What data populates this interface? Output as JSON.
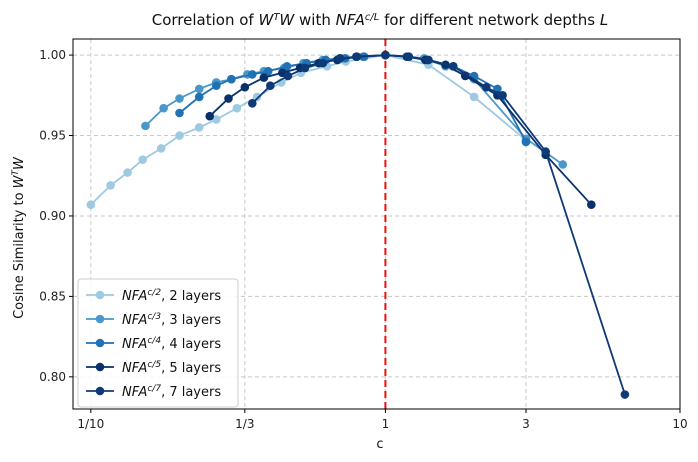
{
  "chart_data": {
    "type": "line",
    "title_parts": [
      "Correlation of ",
      "W",
      "T",
      "W",
      " with ",
      "NFA",
      "c/L",
      " for different network depths ",
      "L"
    ],
    "title": "Correlation of W^T W with NFA^{c/L} for different network depths L",
    "xlabel": "c",
    "ylabel": "Cosine Similarity to W^T W",
    "ylabel_parts": [
      "Cosine Similarity to ",
      "W",
      "T",
      "W"
    ],
    "xscale": "log",
    "xlim": [
      0.087,
      10
    ],
    "ylim": [
      0.78,
      1.01
    ],
    "xticks": [
      {
        "value": 0.1,
        "label": "1/10"
      },
      {
        "value": 0.3333,
        "label": "1/3"
      },
      {
        "value": 1,
        "label": "1"
      },
      {
        "value": 3,
        "label": "3"
      },
      {
        "value": 10,
        "label": "10"
      }
    ],
    "yticks": [
      {
        "value": 0.8,
        "label": "0.80"
      },
      {
        "value": 0.85,
        "label": "0.85"
      },
      {
        "value": 0.9,
        "label": "0.90"
      },
      {
        "value": 0.95,
        "label": "0.95"
      },
      {
        "value": 1.0,
        "label": "1.00"
      }
    ],
    "grid": true,
    "vline": {
      "x": 1,
      "color": "#e8120c",
      "style": "dashed"
    },
    "legend_position": "lower-left",
    "series": [
      {
        "name": "2 layers",
        "legend_base": "NFA",
        "legend_sup": "c/2",
        "legend_suffix": ", 2 layers",
        "color": "#9ecae1",
        "x": [
          0.1,
          0.1167,
          0.1333,
          0.15,
          0.1733,
          0.2,
          0.2333,
          0.2667,
          0.3133,
          0.3667,
          0.4433,
          0.5167,
          0.6333,
          0.7333,
          1,
          1.4,
          2,
          3
        ],
        "y": [
          0.907,
          0.919,
          0.927,
          0.935,
          0.942,
          0.95,
          0.955,
          0.96,
          0.967,
          0.974,
          0.983,
          0.989,
          0.993,
          0.996,
          1.0,
          0.994,
          0.974,
          0.947
        ]
      },
      {
        "name": "3 layers",
        "legend_base": "NFA",
        "legend_sup": "c/3",
        "legend_suffix": ", 3 layers",
        "color": "#4a98c9",
        "x": [
          0.1533,
          0.1767,
          0.2,
          0.2333,
          0.2667,
          0.3,
          0.34,
          0.3867,
          0.4533,
          0.5267,
          0.6133,
          0.7067,
          0.84,
          1,
          1.2,
          1.3533,
          1.6,
          2,
          3,
          4
        ],
        "y": [
          0.956,
          0.967,
          0.973,
          0.979,
          0.983,
          0.985,
          0.988,
          0.99,
          0.992,
          0.995,
          0.997,
          0.998,
          0.999,
          1.0,
          0.999,
          0.998,
          0.993,
          0.985,
          0.948,
          0.932
        ]
      },
      {
        "name": "4 layers",
        "legend_base": "NFA",
        "legend_sup": "c/4",
        "legend_suffix": ", 4 layers",
        "color": "#2171b5",
        "x": [
          0.2,
          0.2333,
          0.2667,
          0.3,
          0.3533,
          0.4,
          0.4633,
          0.54,
          0.6267,
          0.73,
          0.8467,
          1,
          1.2,
          1.3933,
          1.7,
          2,
          2.4,
          3
        ],
        "y": [
          0.964,
          0.974,
          0.981,
          0.985,
          0.988,
          0.99,
          0.993,
          0.995,
          0.997,
          0.998,
          0.999,
          1.0,
          0.999,
          0.997,
          0.993,
          0.987,
          0.979,
          0.946
        ]
      },
      {
        "name": "5 layers",
        "legend_base": "NFA",
        "legend_sup": "c/5",
        "legend_suffix": ", 5 layers",
        "color": "#08306b",
        "x": [
          0.2533,
          0.2933,
          0.3333,
          0.3867,
          0.4467,
          0.5133,
          0.5933,
          0.6867,
          0.7967,
          1,
          1.1833,
          1.3667,
          1.6,
          1.8667,
          2.4,
          3.5,
          5
        ],
        "y": [
          0.962,
          0.973,
          0.98,
          0.986,
          0.989,
          0.992,
          0.995,
          0.997,
          0.999,
          1.0,
          0.999,
          0.997,
          0.994,
          0.987,
          0.975,
          0.938,
          0.907
        ]
      },
      {
        "name": "7 layers",
        "legend_base": "NFA",
        "legend_sup": "c/7",
        "legend_suffix": ", 7 layers",
        "color": "#0e3a75",
        "x": [
          0.3533,
          0.4067,
          0.4667,
          0.5333,
          0.6133,
          0.7,
          0.8,
          1,
          1.2,
          1.4,
          1.7,
          2.2,
          2.5,
          3.5,
          6.5
        ],
        "y": [
          0.97,
          0.981,
          0.987,
          0.992,
          0.995,
          0.998,
          0.999,
          1.0,
          0.999,
          0.997,
          0.993,
          0.98,
          0.975,
          0.94,
          0.789
        ]
      }
    ]
  }
}
